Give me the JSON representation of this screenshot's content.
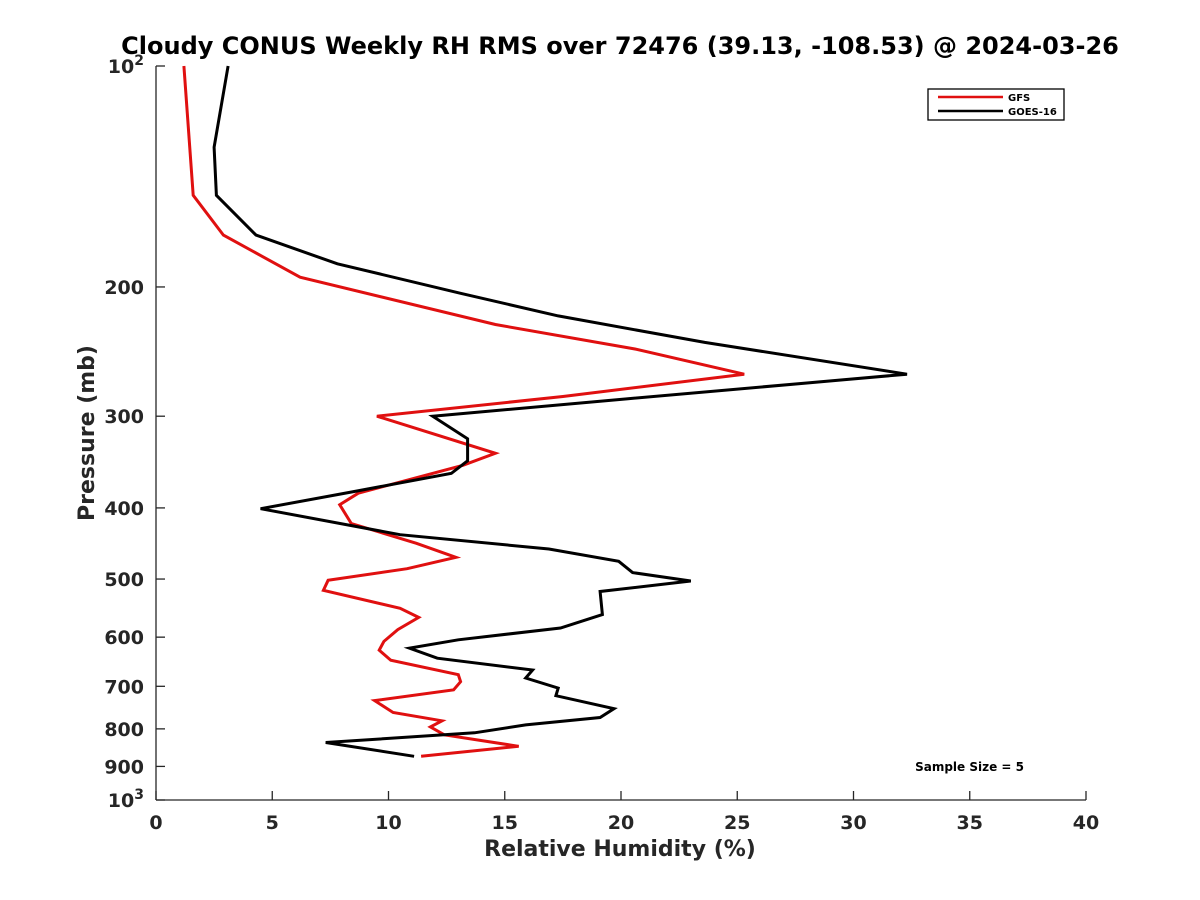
{
  "chart_data": {
    "type": "line",
    "title": "Cloudy CONUS Weekly RH RMS over 72476 (39.13, -108.53) @ 2024-03-26",
    "xlabel": "Relative Humidity (%)",
    "ylabel": "Pressure (mb)",
    "xlim": [
      0,
      40
    ],
    "ylim": [
      100,
      1000
    ],
    "y_scale": "log",
    "y_reversed": true,
    "x_ticks": [
      0,
      5,
      10,
      15,
      20,
      25,
      30,
      35,
      40
    ],
    "y_ticks": [
      {
        "value": 100,
        "label": "10",
        "sup": "2"
      },
      {
        "value": 200,
        "label": "200",
        "sup": ""
      },
      {
        "value": 300,
        "label": "300",
        "sup": ""
      },
      {
        "value": 400,
        "label": "400",
        "sup": ""
      },
      {
        "value": 500,
        "label": "500",
        "sup": ""
      },
      {
        "value": 600,
        "label": "600",
        "sup": ""
      },
      {
        "value": 700,
        "label": "700",
        "sup": ""
      },
      {
        "value": 800,
        "label": "800",
        "sup": ""
      },
      {
        "value": 900,
        "label": "900",
        "sup": ""
      },
      {
        "value": 1000,
        "label": "10",
        "sup": "3"
      }
    ],
    "legend_position": "top-right",
    "grid": false,
    "annotation": "Sample Size = 5",
    "series": [
      {
        "name": "GFS",
        "color": "#e01010",
        "points": [
          [
            1.2,
            100
          ],
          [
            1.6,
            150
          ],
          [
            2.9,
            170
          ],
          [
            6.2,
            194
          ],
          [
            14.6,
            225
          ],
          [
            20.6,
            243
          ],
          [
            25.3,
            263
          ],
          [
            17.5,
            282
          ],
          [
            9.5,
            300
          ],
          [
            14.6,
            337
          ],
          [
            13.2,
            350
          ],
          [
            10.2,
            371
          ],
          [
            8.7,
            382
          ],
          [
            7.9,
            396
          ],
          [
            8.4,
            420
          ],
          [
            11.2,
            447
          ],
          [
            12.9,
            467
          ],
          [
            10.8,
            484
          ],
          [
            7.4,
            502
          ],
          [
            7.2,
            518
          ],
          [
            10.5,
            548
          ],
          [
            11.3,
            564
          ],
          [
            10.4,
            586
          ],
          [
            9.8,
            608
          ],
          [
            9.6,
            625
          ],
          [
            10.1,
            645
          ],
          [
            13.0,
            675
          ],
          [
            13.1,
            690
          ],
          [
            12.8,
            708
          ],
          [
            9.4,
            732
          ],
          [
            10.2,
            760
          ],
          [
            12.3,
            780
          ],
          [
            11.8,
            795
          ],
          [
            12.4,
            815
          ],
          [
            15.6,
            845
          ],
          [
            11.4,
            872
          ]
        ]
      },
      {
        "name": "GOES-16",
        "color": "#000000",
        "points": [
          [
            3.1,
            100
          ],
          [
            2.5,
            129
          ],
          [
            2.6,
            150
          ],
          [
            4.3,
            170
          ],
          [
            7.8,
            186
          ],
          [
            13.1,
            204
          ],
          [
            17.3,
            219
          ],
          [
            23.6,
            238
          ],
          [
            32.3,
            263
          ],
          [
            20.3,
            284
          ],
          [
            11.9,
            300
          ],
          [
            13.4,
            322
          ],
          [
            13.4,
            345
          ],
          [
            12.7,
            359
          ],
          [
            8.5,
            380
          ],
          [
            4.5,
            401
          ],
          [
            10.5,
            435
          ],
          [
            16.9,
            455
          ],
          [
            19.9,
            473
          ],
          [
            20.5,
            490
          ],
          [
            23.0,
            503
          ],
          [
            19.1,
            520
          ],
          [
            19.2,
            559
          ],
          [
            17.4,
            583
          ],
          [
            13.0,
            605
          ],
          [
            10.9,
            621
          ],
          [
            12.1,
            641
          ],
          [
            16.2,
            665
          ],
          [
            15.9,
            682
          ],
          [
            17.3,
            704
          ],
          [
            17.2,
            721
          ],
          [
            19.7,
            751
          ],
          [
            19.1,
            772
          ],
          [
            15.9,
            790
          ],
          [
            13.7,
            810
          ],
          [
            7.3,
            835
          ],
          [
            11.1,
            872
          ]
        ]
      }
    ]
  }
}
